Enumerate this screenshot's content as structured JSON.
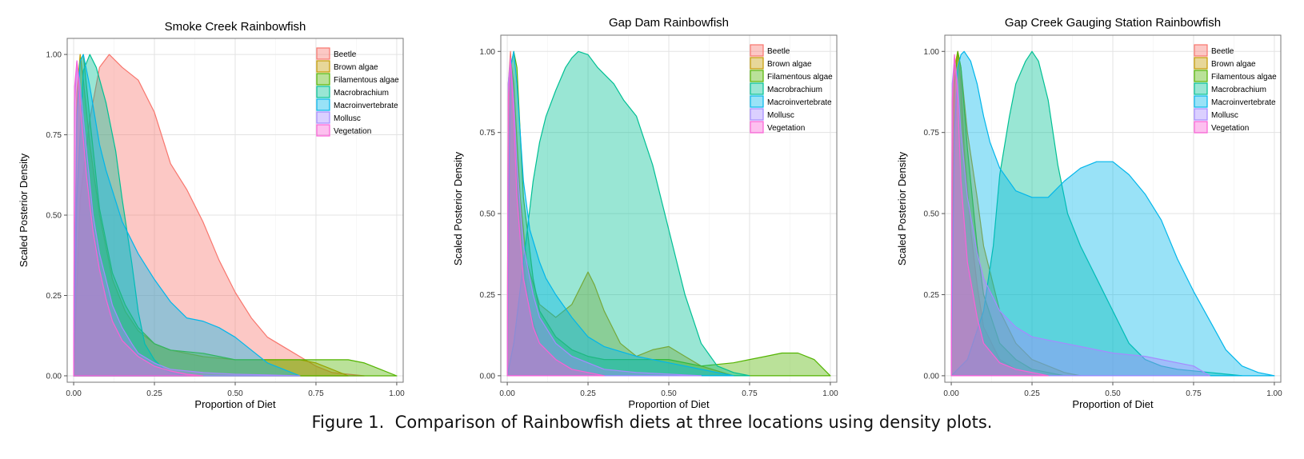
{
  "caption": "Figure 1.  Comparison of Rainbowfish diets at three locations using density plots.",
  "colors": {
    "Beetle": "#F8766D",
    "Brown algae": "#C49A00",
    "Filamentous algae": "#53B400",
    "Macrobrachium": "#00C094",
    "Macroinvertebrate": "#00B6EB",
    "Mollusc": "#A58AFF",
    "Vegetation": "#FB61D7"
  },
  "chart_data": [
    {
      "type": "area",
      "title": "Smoke Creek Rainbowfish",
      "xlabel": "Proportion of Diet",
      "ylabel": "Scaled Posterior Density",
      "xlim": [
        -0.02,
        1.02
      ],
      "ylim": [
        -0.02,
        1.05
      ],
      "xticks": [
        "0.00",
        "0.25",
        "0.50",
        "0.75",
        "1.00"
      ],
      "yticks": [
        "0.00",
        "0.25",
        "0.50",
        "0.75",
        "1.00"
      ],
      "grid": true,
      "legend_position": "top-right",
      "legend": [
        "Beetle",
        "Brown algae",
        "Filamentous algae",
        "Macrobrachium",
        "Macroinvertebrate",
        "Mollusc",
        "Vegetation"
      ],
      "series": [
        {
          "name": "Beetle",
          "x": [
            0.0,
            0.02,
            0.05,
            0.08,
            0.11,
            0.15,
            0.2,
            0.25,
            0.3,
            0.35,
            0.4,
            0.45,
            0.5,
            0.55,
            0.6,
            0.65,
            0.7,
            0.75,
            0.8,
            0.85,
            0.9
          ],
          "y": [
            0.0,
            0.55,
            0.8,
            0.96,
            1.0,
            0.96,
            0.92,
            0.82,
            0.66,
            0.58,
            0.48,
            0.36,
            0.26,
            0.18,
            0.12,
            0.09,
            0.06,
            0.03,
            0.01,
            0.005,
            0.0
          ]
        },
        {
          "name": "Brown algae",
          "x": [
            0.0,
            0.01,
            0.02,
            0.03,
            0.05,
            0.08,
            0.12,
            0.16,
            0.2,
            0.25,
            0.3,
            0.4,
            0.5,
            0.6,
            0.7,
            0.75,
            0.8,
            0.85
          ],
          "y": [
            0.0,
            0.88,
            1.0,
            0.92,
            0.72,
            0.5,
            0.3,
            0.2,
            0.14,
            0.1,
            0.08,
            0.06,
            0.05,
            0.05,
            0.05,
            0.04,
            0.02,
            0.0
          ]
        },
        {
          "name": "Filamentous algae",
          "x": [
            0.0,
            0.01,
            0.02,
            0.03,
            0.05,
            0.08,
            0.12,
            0.16,
            0.2,
            0.25,
            0.3,
            0.4,
            0.5,
            0.6,
            0.7,
            0.8,
            0.85,
            0.9,
            0.95,
            1.0
          ],
          "y": [
            0.0,
            0.82,
            0.98,
            1.0,
            0.8,
            0.52,
            0.32,
            0.22,
            0.15,
            0.1,
            0.08,
            0.07,
            0.05,
            0.05,
            0.05,
            0.05,
            0.05,
            0.04,
            0.02,
            0.0
          ]
        },
        {
          "name": "Macrobrachium",
          "x": [
            0.0,
            0.01,
            0.03,
            0.05,
            0.07,
            0.1,
            0.13,
            0.15,
            0.18,
            0.2,
            0.22,
            0.25,
            0.28,
            0.3,
            0.35
          ],
          "y": [
            0.0,
            0.55,
            0.95,
            1.0,
            0.96,
            0.85,
            0.7,
            0.55,
            0.35,
            0.2,
            0.1,
            0.05,
            0.02,
            0.01,
            0.0
          ]
        },
        {
          "name": "Macroinvertebrate",
          "x": [
            0.0,
            0.01,
            0.02,
            0.03,
            0.05,
            0.08,
            0.1,
            0.15,
            0.2,
            0.25,
            0.3,
            0.35,
            0.4,
            0.45,
            0.5,
            0.55,
            0.6,
            0.65,
            0.7
          ],
          "y": [
            0.0,
            0.8,
            0.98,
            1.0,
            0.9,
            0.72,
            0.64,
            0.48,
            0.38,
            0.3,
            0.23,
            0.18,
            0.17,
            0.15,
            0.12,
            0.08,
            0.04,
            0.02,
            0.0
          ]
        },
        {
          "name": "Mollusc",
          "x": [
            0.0,
            0.003,
            0.01,
            0.02,
            0.04,
            0.06,
            0.08,
            0.1,
            0.12,
            0.15,
            0.18,
            0.2,
            0.25,
            0.3,
            0.4,
            0.5,
            0.6,
            0.7
          ],
          "y": [
            0.0,
            0.85,
            0.98,
            0.9,
            0.7,
            0.5,
            0.38,
            0.3,
            0.22,
            0.15,
            0.1,
            0.07,
            0.04,
            0.02,
            0.01,
            0.005,
            0.003,
            0.0
          ]
        },
        {
          "name": "Vegetation",
          "x": [
            0.0,
            0.003,
            0.01,
            0.02,
            0.04,
            0.06,
            0.08,
            0.1,
            0.12,
            0.15,
            0.2,
            0.25,
            0.3,
            0.35,
            0.4
          ],
          "y": [
            0.0,
            0.9,
            0.98,
            0.85,
            0.62,
            0.45,
            0.33,
            0.24,
            0.17,
            0.11,
            0.06,
            0.03,
            0.015,
            0.005,
            0.0
          ]
        }
      ]
    },
    {
      "type": "area",
      "title": "Gap Dam Rainbowfish",
      "xlabel": "Proportion of Diet",
      "ylabel": "Scaled Posterior Density",
      "xlim": [
        -0.02,
        1.02
      ],
      "ylim": [
        -0.02,
        1.05
      ],
      "xticks": [
        "0.00",
        "0.25",
        "0.50",
        "0.75",
        "1.00"
      ],
      "yticks": [
        "0.00",
        "0.25",
        "0.50",
        "0.75",
        "1.00"
      ],
      "grid": true,
      "legend_position": "top-right",
      "legend": [
        "Beetle",
        "Brown algae",
        "Filamentous algae",
        "Macrobrachium",
        "Macroinvertebrate",
        "Mollusc",
        "Vegetation"
      ],
      "series": [
        {
          "name": "Beetle",
          "x": [
            0.0,
            0.003,
            0.01,
            0.02,
            0.03,
            0.05,
            0.07,
            0.1,
            0.15,
            0.2,
            0.25,
            0.3
          ],
          "y": [
            0.0,
            0.9,
            1.0,
            0.85,
            0.6,
            0.35,
            0.2,
            0.1,
            0.05,
            0.02,
            0.01,
            0.0
          ]
        },
        {
          "name": "Brown algae",
          "x": [
            0.0,
            0.005,
            0.01,
            0.02,
            0.04,
            0.06,
            0.1,
            0.15,
            0.2,
            0.23,
            0.25,
            0.27,
            0.3,
            0.35,
            0.4,
            0.45,
            0.5,
            0.55,
            0.6,
            0.7
          ],
          "y": [
            0.0,
            0.85,
            0.98,
            0.9,
            0.55,
            0.35,
            0.22,
            0.18,
            0.22,
            0.28,
            0.32,
            0.28,
            0.2,
            0.1,
            0.06,
            0.08,
            0.09,
            0.06,
            0.03,
            0.0
          ]
        },
        {
          "name": "Filamentous algae",
          "x": [
            0.0,
            0.01,
            0.02,
            0.03,
            0.05,
            0.08,
            0.1,
            0.15,
            0.2,
            0.25,
            0.3,
            0.4,
            0.5,
            0.6,
            0.7,
            0.75,
            0.8,
            0.85,
            0.9,
            0.95,
            1.0
          ],
          "y": [
            0.0,
            0.95,
            1.0,
            0.95,
            0.55,
            0.3,
            0.2,
            0.12,
            0.08,
            0.06,
            0.05,
            0.05,
            0.05,
            0.03,
            0.04,
            0.05,
            0.06,
            0.07,
            0.07,
            0.05,
            0.0
          ]
        },
        {
          "name": "Macrobrachium",
          "x": [
            0.0,
            0.02,
            0.05,
            0.08,
            0.1,
            0.12,
            0.15,
            0.18,
            0.2,
            0.22,
            0.25,
            0.28,
            0.3,
            0.33,
            0.36,
            0.4,
            0.45,
            0.5,
            0.55,
            0.6,
            0.65,
            0.7,
            0.75
          ],
          "y": [
            0.0,
            0.1,
            0.35,
            0.6,
            0.72,
            0.8,
            0.88,
            0.95,
            0.98,
            1.0,
            0.99,
            0.95,
            0.93,
            0.9,
            0.85,
            0.8,
            0.65,
            0.45,
            0.25,
            0.1,
            0.03,
            0.01,
            0.0
          ]
        },
        {
          "name": "Macroinvertebrate",
          "x": [
            0.0,
            0.005,
            0.01,
            0.02,
            0.03,
            0.05,
            0.07,
            0.1,
            0.12,
            0.15,
            0.2,
            0.25,
            0.3,
            0.4,
            0.5,
            0.6,
            0.7
          ],
          "y": [
            0.0,
            0.6,
            0.95,
            1.0,
            0.9,
            0.6,
            0.45,
            0.35,
            0.3,
            0.25,
            0.18,
            0.12,
            0.09,
            0.06,
            0.04,
            0.02,
            0.0
          ]
        },
        {
          "name": "Mollusc",
          "x": [
            0.0,
            0.003,
            0.01,
            0.02,
            0.03,
            0.05,
            0.08,
            0.1,
            0.15,
            0.2,
            0.25,
            0.3,
            0.4,
            0.5,
            0.6
          ],
          "y": [
            0.0,
            0.9,
            0.98,
            0.85,
            0.65,
            0.4,
            0.25,
            0.18,
            0.1,
            0.06,
            0.04,
            0.02,
            0.01,
            0.005,
            0.0
          ]
        },
        {
          "name": "Vegetation",
          "x": [
            0.0,
            0.003,
            0.01,
            0.02,
            0.03,
            0.05,
            0.08,
            0.1,
            0.15,
            0.2,
            0.25,
            0.3
          ],
          "y": [
            0.0,
            0.85,
            0.98,
            0.8,
            0.55,
            0.3,
            0.15,
            0.1,
            0.05,
            0.02,
            0.01,
            0.0
          ]
        }
      ]
    },
    {
      "type": "area",
      "title": "Gap Creek Gauging Station Rainbowfish",
      "xlabel": "Proportion of Diet",
      "ylabel": "Scaled Posterior Density",
      "xlim": [
        -0.02,
        1.02
      ],
      "ylim": [
        -0.02,
        1.05
      ],
      "xticks": [
        "0.00",
        "0.25",
        "0.50",
        "0.75",
        "1.00"
      ],
      "yticks": [
        "0.00",
        "0.25",
        "0.50",
        "0.75",
        "1.00"
      ],
      "grid": true,
      "legend_position": "top-right",
      "legend": [
        "Beetle",
        "Brown algae",
        "Filamentous algae",
        "Macrobrachium",
        "Macroinvertebrate",
        "Mollusc",
        "Vegetation"
      ],
      "series": [
        {
          "name": "Beetle",
          "x": [
            0.0,
            0.005,
            0.01,
            0.02,
            0.03,
            0.04,
            0.06,
            0.08,
            0.1,
            0.15,
            0.2,
            0.25
          ],
          "y": [
            0.0,
            0.85,
            0.95,
            1.0,
            0.9,
            0.7,
            0.45,
            0.28,
            0.15,
            0.05,
            0.02,
            0.0
          ]
        },
        {
          "name": "Brown algae",
          "x": [
            0.0,
            0.005,
            0.01,
            0.02,
            0.03,
            0.05,
            0.08,
            0.1,
            0.15,
            0.2,
            0.25,
            0.3,
            0.35,
            0.4
          ],
          "y": [
            0.0,
            0.8,
            0.95,
            1.0,
            0.95,
            0.75,
            0.55,
            0.4,
            0.2,
            0.1,
            0.05,
            0.03,
            0.01,
            0.0
          ]
        },
        {
          "name": "Filamentous algae",
          "x": [
            0.0,
            0.01,
            0.02,
            0.03,
            0.05,
            0.08,
            0.1,
            0.15,
            0.2,
            0.25,
            0.3,
            0.35
          ],
          "y": [
            0.0,
            0.9,
            1.0,
            0.95,
            0.7,
            0.4,
            0.25,
            0.1,
            0.05,
            0.02,
            0.01,
            0.0
          ]
        },
        {
          "name": "Macrobrachium",
          "x": [
            0.0,
            0.05,
            0.1,
            0.13,
            0.15,
            0.18,
            0.2,
            0.23,
            0.25,
            0.27,
            0.3,
            0.33,
            0.36,
            0.4,
            0.45,
            0.5,
            0.55,
            0.6,
            0.65,
            0.7,
            0.8,
            0.9
          ],
          "y": [
            0.0,
            0.05,
            0.2,
            0.4,
            0.62,
            0.8,
            0.9,
            0.97,
            1.0,
            0.97,
            0.85,
            0.65,
            0.5,
            0.4,
            0.3,
            0.2,
            0.1,
            0.05,
            0.03,
            0.02,
            0.01,
            0.0
          ]
        },
        {
          "name": "Macroinvertebrate",
          "x": [
            0.0,
            0.01,
            0.02,
            0.03,
            0.04,
            0.06,
            0.08,
            0.1,
            0.12,
            0.15,
            0.2,
            0.25,
            0.3,
            0.35,
            0.4,
            0.45,
            0.5,
            0.55,
            0.6,
            0.65,
            0.7,
            0.75,
            0.8,
            0.85,
            0.9,
            0.95,
            1.0
          ],
          "y": [
            0.0,
            0.75,
            0.95,
            0.99,
            1.0,
            0.97,
            0.9,
            0.8,
            0.72,
            0.64,
            0.57,
            0.55,
            0.55,
            0.6,
            0.64,
            0.66,
            0.66,
            0.62,
            0.56,
            0.48,
            0.36,
            0.26,
            0.17,
            0.08,
            0.03,
            0.01,
            0.0
          ]
        },
        {
          "name": "Mollusc",
          "x": [
            0.0,
            0.003,
            0.01,
            0.02,
            0.03,
            0.05,
            0.08,
            0.1,
            0.15,
            0.2,
            0.25,
            0.3,
            0.35,
            0.4,
            0.5,
            0.6,
            0.7,
            0.75,
            0.8
          ],
          "y": [
            0.0,
            0.9,
            0.98,
            0.9,
            0.75,
            0.55,
            0.38,
            0.3,
            0.2,
            0.15,
            0.12,
            0.11,
            0.1,
            0.09,
            0.07,
            0.06,
            0.04,
            0.03,
            0.0
          ]
        },
        {
          "name": "Vegetation",
          "x": [
            0.0,
            0.003,
            0.01,
            0.02,
            0.03,
            0.05,
            0.08,
            0.1,
            0.15,
            0.2,
            0.25,
            0.3
          ],
          "y": [
            0.0,
            0.85,
            0.99,
            0.85,
            0.6,
            0.35,
            0.18,
            0.1,
            0.04,
            0.02,
            0.01,
            0.0
          ]
        }
      ]
    }
  ]
}
